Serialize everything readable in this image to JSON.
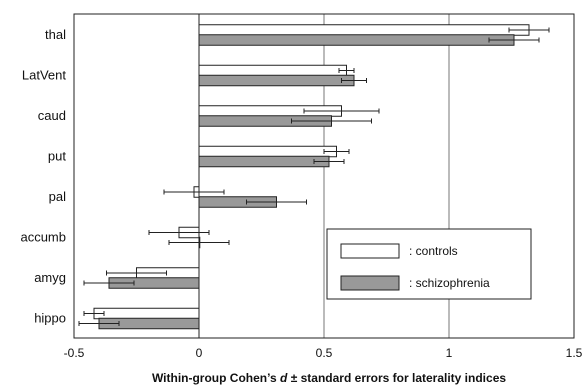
{
  "chart_data": {
    "type": "bar",
    "orientation": "horizontal",
    "categories": [
      "thal",
      "LatVent",
      "caud",
      "put",
      "pal",
      "accumb",
      "amyg",
      "hippo"
    ],
    "series": [
      {
        "name": "controls",
        "color": "#ffffff",
        "values": [
          1.32,
          0.59,
          0.57,
          0.55,
          -0.02,
          -0.08,
          -0.25,
          -0.42
        ],
        "errors": [
          0.08,
          0.03,
          0.15,
          0.05,
          0.12,
          0.12,
          0.12,
          0.04
        ]
      },
      {
        "name": "schizophrenia",
        "color": "#999999",
        "values": [
          1.26,
          0.62,
          0.53,
          0.52,
          0.31,
          0.0,
          -0.36,
          -0.4
        ],
        "errors": [
          0.1,
          0.05,
          0.16,
          0.06,
          0.12,
          0.12,
          0.1,
          0.08
        ]
      }
    ],
    "xlim": [
      -0.5,
      1.5
    ],
    "xticks": [
      "-0.5",
      "0",
      "0.5",
      "1",
      "1.5"
    ],
    "xlabel": "Within-group Cohen’s d ± standard errors for laterality indices",
    "grid": "vertical gridlines at 0.5 and 1",
    "legend": {
      "placement": "bottom-right",
      "entries": [
        ": controls",
        ": schizophrenia"
      ]
    }
  }
}
